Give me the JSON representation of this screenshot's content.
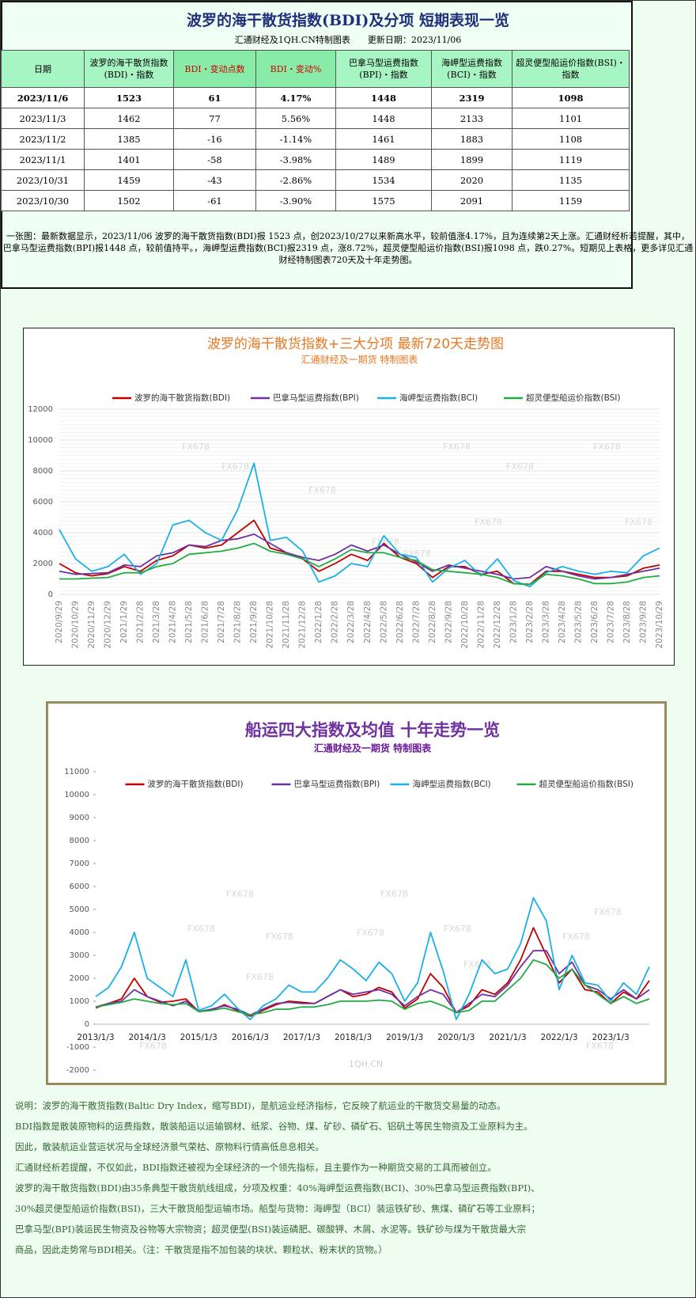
{
  "header": {
    "title": "波罗的海干散货指数(BDI)及分项 短期表现一览",
    "subtitle": "汇通财经及1QH.CN特制图表　　更新日期：2023/11/06"
  },
  "table": {
    "columns": [
      "日期",
      "波罗的海干散货指数(BDI)・指数",
      "BDI・变动点数",
      "BDI・变动%",
      "巴拿马型运费指数(BPI)・指数",
      "海岬型运费指数(BCI)・指数",
      "超灵便型船运价指数(BSI)・指数"
    ],
    "rows": [
      [
        "2023/11/6",
        "1523",
        "61",
        "4.17%",
        "1448",
        "2319",
        "1098"
      ],
      [
        "2023/11/3",
        "1462",
        "77",
        "5.56%",
        "1448",
        "2133",
        "1101"
      ],
      [
        "2023/11/2",
        "1385",
        "-16",
        "-1.14%",
        "1461",
        "1883",
        "1108"
      ],
      [
        "2023/11/1",
        "1401",
        "-58",
        "-3.98%",
        "1489",
        "1899",
        "1119"
      ],
      [
        "2023/10/31",
        "1459",
        "-43",
        "-2.86%",
        "1534",
        "2020",
        "1135"
      ],
      [
        "2023/10/30",
        "1502",
        "-61",
        "-3.90%",
        "1575",
        "2091",
        "1159"
      ]
    ]
  },
  "note": "一张图：最新数据显示，2023/11/06 波罗的海干散货指数(BDI)报 1523 点，创2023/10/27以来新高水平，较前值涨4.17%，且为连续第2天上涨。汇通财经析若提醒，其中，巴拿马型运费指数(BPI)报1448 点，较前值持平。，海岬型运费指数(BCI)报2319 点，涨8.72%，超灵便型船运价指数(BSI)报1098 点，跌0.27%。短期见上表格，更多详见汇通财经特制图表720天及十年走势图。",
  "chart_data": [
    {
      "type": "line",
      "title": "波罗的海干散货指数+三大分项  最新720天走势图",
      "subtitle": "汇通财经及一期货  特制图表",
      "watermark": "FX678",
      "categories": [
        "2020/9/29",
        "2020/10/29",
        "2020/11/29",
        "2020/12/29",
        "2021/1/29",
        "2021/2/28",
        "2021/3/28",
        "2021/4/28",
        "2021/5/28",
        "2021/6/28",
        "2021/7/28",
        "2021/8/28",
        "2021/9/28",
        "2021/10/28",
        "2021/11/28",
        "2021/12/28",
        "2022/1/28",
        "2022/2/28",
        "2022/3/28",
        "2022/4/28",
        "2022/5/28",
        "2022/6/28",
        "2022/7/28",
        "2022/8/28",
        "2022/9/28",
        "2022/10/28",
        "2022/11/28",
        "2022/12/28",
        "2023/1/28",
        "2023/2/28",
        "2023/3/28",
        "2023/4/28",
        "2023/5/28",
        "2023/6/28",
        "2023/7/28",
        "2023/8/28",
        "2023/9/28",
        "2023/10/29"
      ],
      "series": [
        {
          "name": "波罗的海干散货指数(BDI)",
          "color": "#c00000",
          "values": [
            2000,
            1400,
            1200,
            1350,
            1800,
            1500,
            2200,
            2500,
            3200,
            3000,
            3200,
            4000,
            4800,
            3000,
            2700,
            2300,
            1500,
            2000,
            2600,
            2200,
            3300,
            2400,
            2000,
            1100,
            1800,
            1800,
            1300,
            1500,
            700,
            650,
            1500,
            1500,
            1300,
            1100,
            1100,
            1200,
            1700,
            1900
          ]
        },
        {
          "name": "巴拿马型运费指数(BPI)",
          "color": "#7030a0",
          "values": [
            1500,
            1300,
            1350,
            1400,
            1900,
            1800,
            2500,
            2700,
            3200,
            3100,
            3500,
            3600,
            3900,
            3300,
            2700,
            2400,
            2200,
            2600,
            3200,
            2800,
            3200,
            2600,
            2100,
            1500,
            1900,
            1700,
            1500,
            1300,
            1000,
            1100,
            1800,
            1500,
            1200,
            1000,
            1100,
            1300,
            1500,
            1700
          ]
        },
        {
          "name": "海岬型运费指数(BCI)",
          "color": "#1ab0e8",
          "values": [
            4200,
            2300,
            1500,
            1800,
            2600,
            1300,
            2000,
            4500,
            4800,
            4000,
            3500,
            5500,
            8500,
            3500,
            3700,
            2800,
            800,
            1200,
            2000,
            1800,
            3800,
            2600,
            2400,
            800,
            1700,
            2200,
            1200,
            2300,
            900,
            500,
            1400,
            1800,
            1500,
            1300,
            1500,
            1400,
            2500,
            3000
          ]
        },
        {
          "name": "超灵便型船运价指数(BSI)",
          "color": "#22aa44",
          "values": [
            1000,
            1000,
            1050,
            1100,
            1400,
            1400,
            1800,
            2000,
            2600,
            2700,
            2800,
            3000,
            3300,
            2800,
            2600,
            2300,
            1800,
            2300,
            2900,
            2700,
            2700,
            2400,
            2200,
            1600,
            1500,
            1400,
            1300,
            1100,
            700,
            650,
            1300,
            1200,
            1000,
            700,
            700,
            800,
            1100,
            1200
          ]
        }
      ],
      "ylim": [
        0,
        12000
      ],
      "yticks": [
        0,
        2000,
        4000,
        6000,
        8000,
        10000,
        12000
      ],
      "grid": true
    },
    {
      "type": "line",
      "title": "船运四大指数及均值 十年走势一览",
      "subtitle": "汇通财经及一期货 特制图表",
      "watermark": "FX678",
      "footer_mark": "1QH.CN",
      "categories": [
        "2013/1/3",
        null,
        null,
        null,
        "2014/1/3",
        null,
        null,
        null,
        "2015/1/3",
        null,
        null,
        null,
        "2016/1/3",
        null,
        null,
        null,
        "2017/1/3",
        null,
        null,
        null,
        "2018/1/3",
        null,
        null,
        null,
        "2019/1/3",
        null,
        null,
        null,
        "2020/1/3",
        null,
        null,
        null,
        "2021/1/3",
        null,
        null,
        null,
        "2022/1/3",
        null,
        null,
        null,
        "2023/1/3",
        null,
        null,
        null
      ],
      "series": [
        {
          "name": "波罗的海干散货指数(BDI)",
          "color": "#c00000",
          "values": [
            750,
            900,
            1100,
            2000,
            1200,
            950,
            1000,
            1100,
            550,
            600,
            850,
            600,
            350,
            600,
            850,
            1000,
            950,
            900,
            1200,
            1500,
            1200,
            1300,
            1600,
            1400,
            700,
            1100,
            2200,
            1600,
            500,
            800,
            1500,
            1300,
            1800,
            2800,
            4200,
            3000,
            1800,
            2400,
            1500,
            1400,
            900,
            1400,
            1100,
            1900
          ]
        },
        {
          "name": "巴拿马型运费指数(BPI)",
          "color": "#7030a0",
          "values": [
            700,
            900,
            1000,
            1500,
            1200,
            1000,
            800,
            1000,
            550,
            650,
            800,
            650,
            400,
            650,
            900,
            950,
            900,
            900,
            1200,
            1500,
            1300,
            1400,
            1500,
            1300,
            800,
            1200,
            1500,
            1300,
            500,
            900,
            1300,
            1200,
            1700,
            2500,
            3200,
            3200,
            2200,
            2700,
            1700,
            1500,
            1100,
            1500,
            1100,
            1500
          ]
        },
        {
          "name": "海岬型运费指数(BCI)",
          "color": "#1ab0e8",
          "values": [
            1200,
            1600,
            2500,
            4000,
            2000,
            1600,
            1200,
            2800,
            600,
            800,
            1300,
            700,
            200,
            800,
            1100,
            1700,
            1400,
            1400,
            2000,
            2800,
            2400,
            1900,
            2700,
            2200,
            1000,
            1800,
            4000,
            2300,
            200,
            1300,
            2800,
            2200,
            2400,
            3500,
            5500,
            4500,
            1500,
            3000,
            1800,
            1700,
            1000,
            1800,
            1300,
            2500
          ]
        },
        {
          "name": "超灵便型船运价指数(BSI)",
          "color": "#22aa44",
          "values": [
            750,
            850,
            950,
            1100,
            1000,
            900,
            850,
            900,
            550,
            600,
            700,
            550,
            400,
            500,
            650,
            650,
            750,
            750,
            850,
            1000,
            1000,
            1000,
            1050,
            1000,
            650,
            900,
            1000,
            800,
            500,
            600,
            1000,
            1000,
            1500,
            2000,
            2800,
            2600,
            2000,
            2400,
            1700,
            1300,
            900,
            1200,
            900,
            1100
          ]
        }
      ],
      "ylim": [
        -2000,
        11000
      ],
      "yticks": [
        -2000,
        -1000,
        0,
        1000,
        2000,
        3000,
        4000,
        5000,
        6000,
        7000,
        8000,
        9000,
        10000,
        11000
      ],
      "grid": false
    }
  ],
  "footer": [
    "说明：波罗的海干散货指数(Baltic Dry Index，缩写BDI)，是航运业经济指标，它反映了航运业的干散货交易量的动态。",
    "BDI指数是散装原物料的运费指数，散装船运以运输钢材、纸浆、谷物、煤、矿砂、磷矿石、铝矾土等民生物资及工业原料为主。",
    "因此，散装航运业营运状况与全球经济景气荣枯、原物料行情高低息息相关。",
    "汇通财经析若提醒，不仅如此，BDI指数还被视为全球经济的一个领先指标，且主要作为一种期货交易的工具而被创立。",
    "波罗的海干散货指数(BDI)由35条典型干散货航线组成，分项及权重：40%海岬型运费指数(BCI)、30%巴拿马型运费指数(BPI)、",
    "30%超灵便型船运价指数(BSI)，三大干散货船型运输市场。船型与货物：海岬型（BCI）装运铁矿砂、焦煤、磷矿石等工业原料；",
    "巴拿马型(BPI)装运民生物资及谷物等大宗物资；超灵便型(BSI)装运磷肥、碳酸钾、木屑、水泥等。铁矿砂与煤为干散货最大宗",
    "商品，因此走势常与BDI相关。（注：干散货是指不加包装的块状、颗粒状、粉末状的货物。）"
  ]
}
